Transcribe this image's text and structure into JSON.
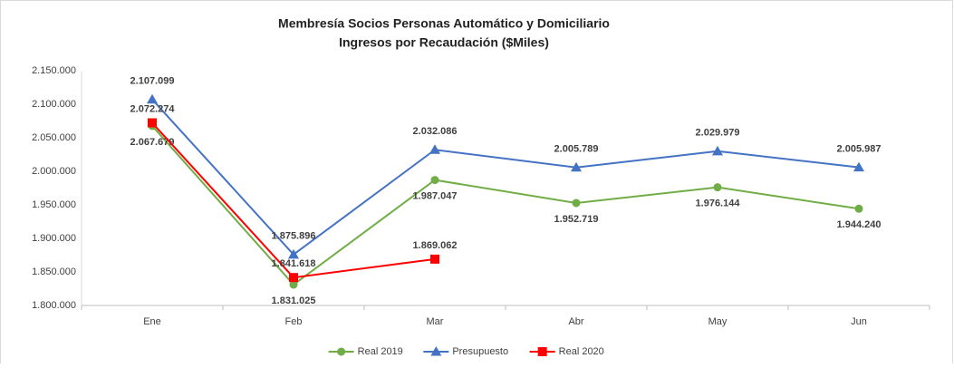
{
  "chart_data": {
    "type": "line",
    "title": "Membresía Socios Personas Automático y Domiciliario",
    "subtitle": "Ingresos por Recaudación ($Miles)",
    "categories": [
      "Ene",
      "Feb",
      "Mar",
      "Abr",
      "May",
      "Jun"
    ],
    "ylim": [
      1800000,
      2150000
    ],
    "yticks": [
      {
        "value": 1800000,
        "label": "1.800.000"
      },
      {
        "value": 1850000,
        "label": "1.850.000"
      },
      {
        "value": 1900000,
        "label": "1.900.000"
      },
      {
        "value": 1950000,
        "label": "1.950.000"
      },
      {
        "value": 2000000,
        "label": "2.000.000"
      },
      {
        "value": 2050000,
        "label": "2.050.000"
      },
      {
        "value": 2100000,
        "label": "2.100.000"
      },
      {
        "value": 2150000,
        "label": "2.150.000"
      }
    ],
    "grid": false,
    "legend": "bottom",
    "series": [
      {
        "name": "Real 2019",
        "color": "#70ad47",
        "marker": "circle",
        "values": [
          2067679,
          1831025,
          1987047,
          1952719,
          1976144,
          1944240
        ],
        "value_labels": [
          "2.067.679",
          "1.831.025",
          "1.987.047",
          "1.952.719",
          "1.976.144",
          "1.944.240"
        ]
      },
      {
        "name": "Presupuesto",
        "color": "#4472c4",
        "marker": "triangle",
        "values": [
          2107099,
          1875896,
          2032086,
          2005789,
          2029979,
          2005987
        ],
        "value_labels": [
          "2.107.099",
          "1.875.896",
          "2.032.086",
          "2.005.789",
          "2.029.979",
          "2.005.987"
        ]
      },
      {
        "name": "Real 2020",
        "color": "#ff0000",
        "marker": "square",
        "values": [
          2072274,
          1841618,
          1869062,
          null,
          null,
          null
        ],
        "value_labels": [
          "2.072.274",
          "1.841.618",
          "1.869.062",
          null,
          null,
          null
        ]
      }
    ]
  }
}
